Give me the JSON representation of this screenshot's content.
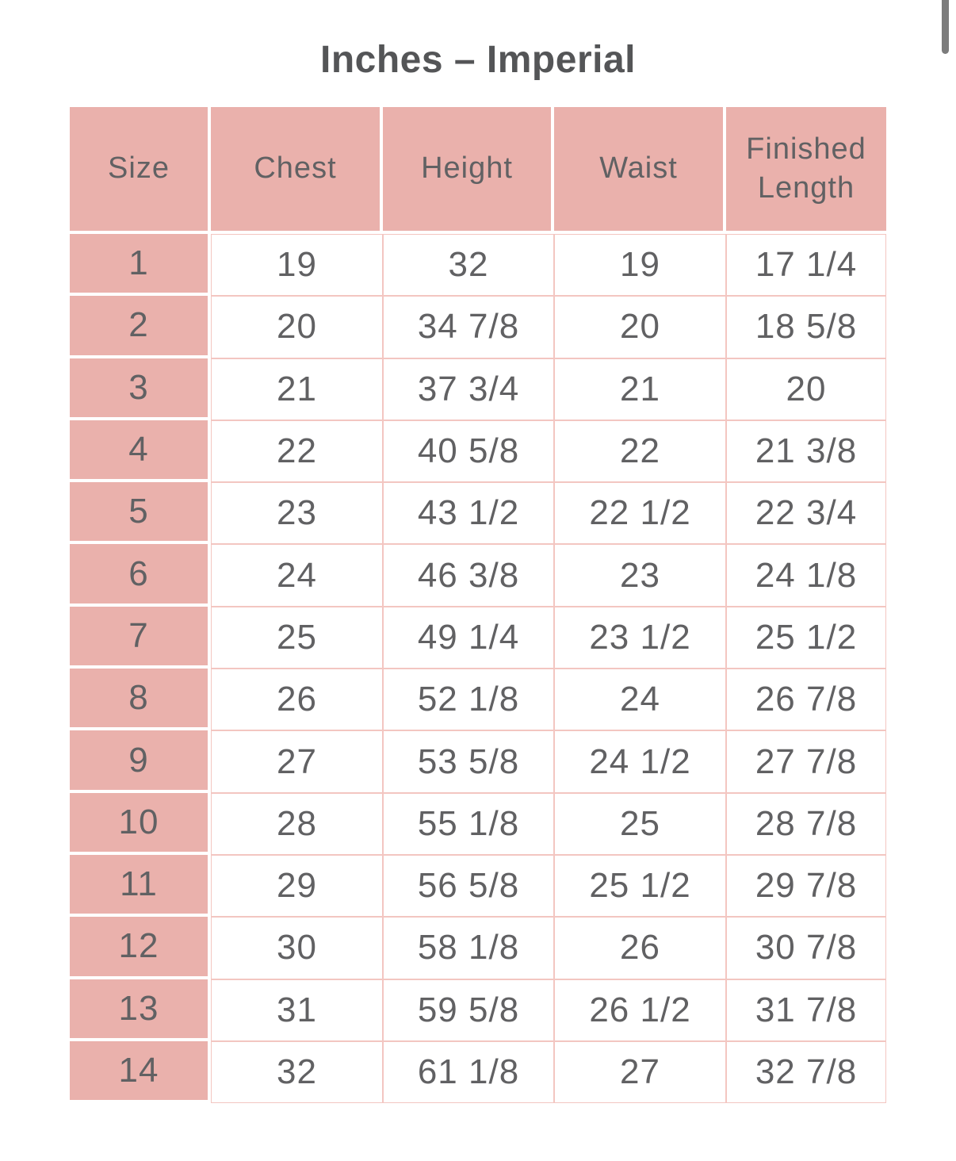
{
  "page": {
    "title": "Inches – Imperial"
  },
  "colors": {
    "cell_pink": "#eab1ac",
    "grid_line_pink": "#f3c6c1",
    "text_gray": "#616163",
    "title_gray": "#545557",
    "scrollbar_gray": "#7c7c7c"
  },
  "table": {
    "columns": [
      "Size",
      "Chest",
      "Height",
      "Waist",
      "Finished Length"
    ],
    "rows": [
      [
        "1",
        "19",
        "32",
        "19",
        "17 1/4"
      ],
      [
        "2",
        "20",
        "34 7/8",
        "20",
        "18 5/8"
      ],
      [
        "3",
        "21",
        "37 3/4",
        "21",
        "20"
      ],
      [
        "4",
        "22",
        "40 5/8",
        "22",
        "21 3/8"
      ],
      [
        "5",
        "23",
        "43 1/2",
        "22 1/2",
        "22 3/4"
      ],
      [
        "6",
        "24",
        "46 3/8",
        "23",
        "24 1/8"
      ],
      [
        "7",
        "25",
        "49 1/4",
        "23 1/2",
        "25 1/2"
      ],
      [
        "8",
        "26",
        "52 1/8",
        "24",
        "26 7/8"
      ],
      [
        "9",
        "27",
        "53 5/8",
        "24 1/2",
        "27 7/8"
      ],
      [
        "10",
        "28",
        "55 1/8",
        "25",
        "28 7/8"
      ],
      [
        "11",
        "29",
        "56 5/8",
        "25 1/2",
        "29 7/8"
      ],
      [
        "12",
        "30",
        "58 1/8",
        "26",
        "30 7/8"
      ],
      [
        "13",
        "31",
        "59 5/8",
        "26 1/2",
        "31 7/8"
      ],
      [
        "14",
        "32",
        "61 1/8",
        "27",
        "32 7/8"
      ]
    ]
  }
}
